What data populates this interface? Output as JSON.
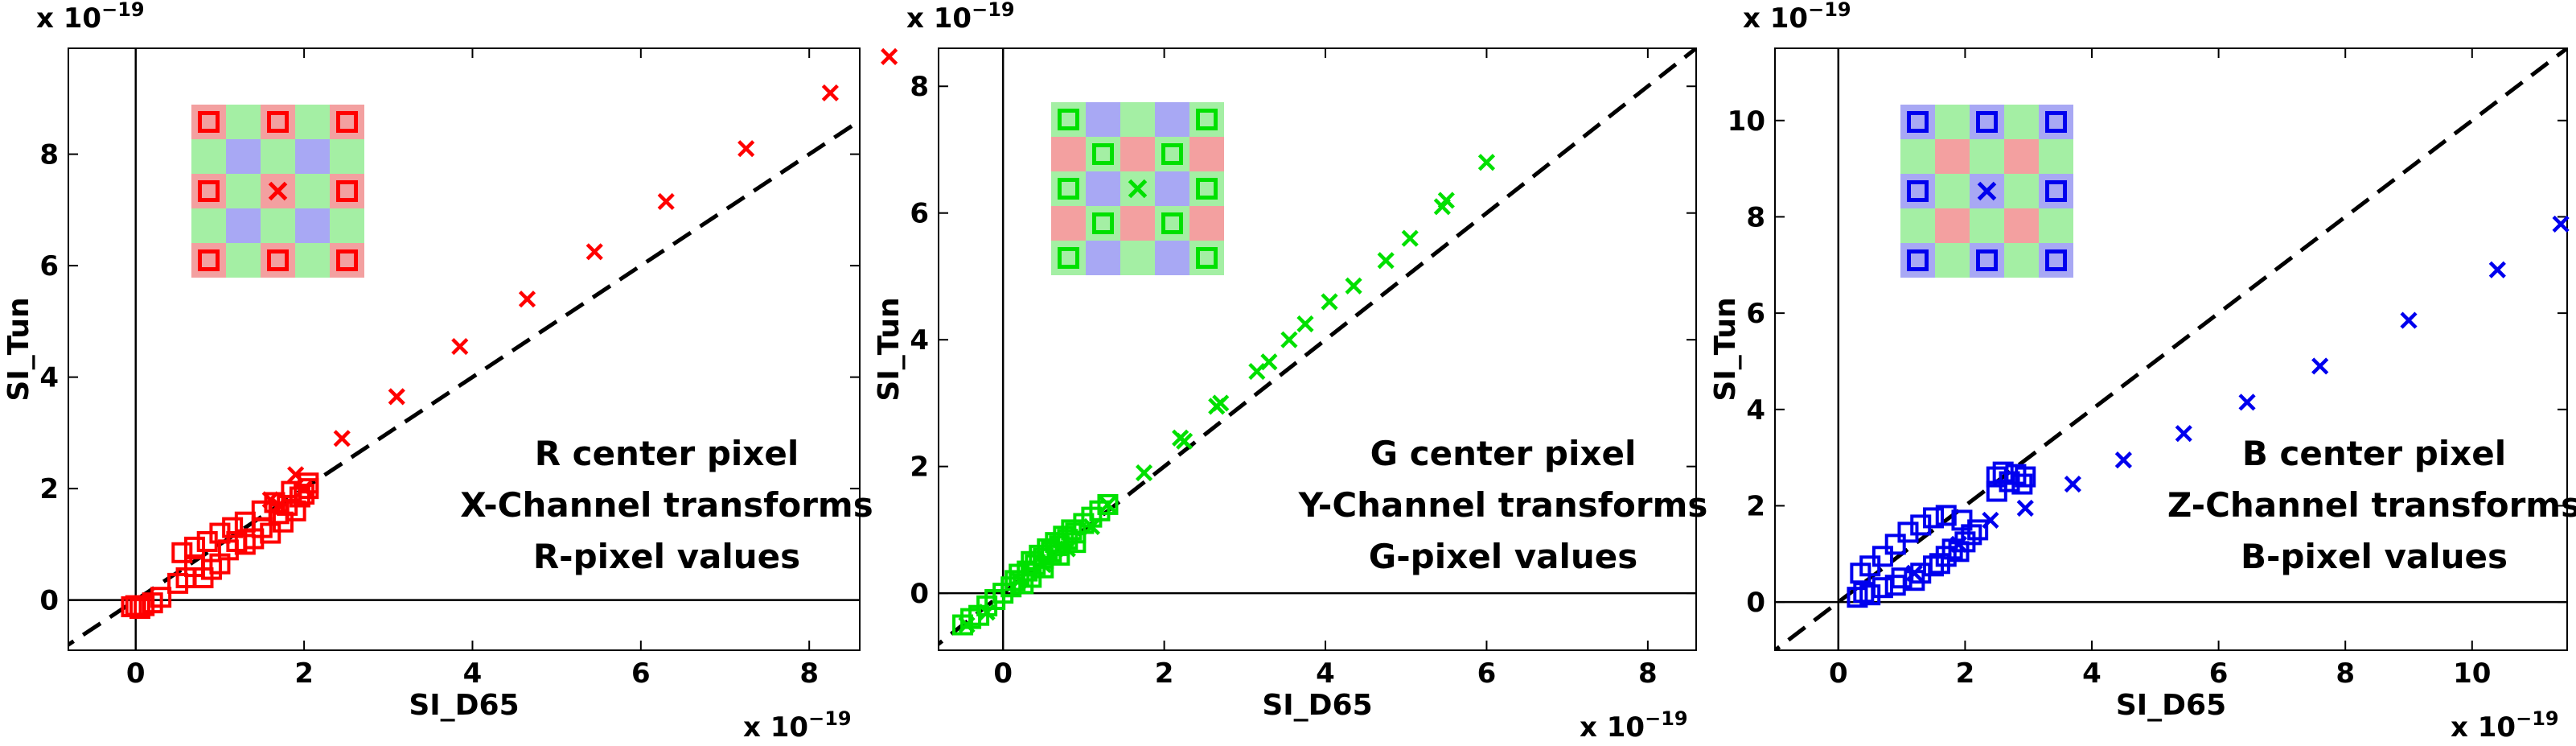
{
  "chart_data": [
    {
      "type": "scatter",
      "xlabel": "SI_D65",
      "ylabel": "SI_Tun",
      "x_exponent_label": "x 10",
      "y_exponent_label": "x 10",
      "exponent": "−19",
      "xlim": [
        -0.8,
        8.6
      ],
      "ylim": [
        -0.9,
        9.9
      ],
      "xticks": [
        0,
        2,
        4,
        6,
        8
      ],
      "yticks": [
        0,
        2,
        4,
        6,
        8
      ],
      "color": "#ff0000",
      "annotations": [
        "R center pixel",
        "X-Channel transforms",
        "R-pixel values"
      ],
      "inset": {
        "layout": [
          "R",
          "G",
          "R",
          "G",
          "R",
          "G",
          "B",
          "G",
          "B",
          "G",
          "R",
          "G",
          "R",
          "G",
          "R",
          "G",
          "B",
          "G",
          "B",
          "G",
          "R",
          "G",
          "R",
          "G",
          "R"
        ],
        "marker_square_cells": [
          0,
          2,
          4,
          10,
          14,
          20,
          22,
          24
        ],
        "marker_x_cell": 12
      },
      "series": [
        {
          "marker": "square",
          "points": [
            [
              -0.05,
              -0.12
            ],
            [
              0.0,
              -0.1
            ],
            [
              0.05,
              -0.15
            ],
            [
              0.1,
              -0.1
            ],
            [
              0.2,
              -0.05
            ],
            [
              0.3,
              0.05
            ],
            [
              0.5,
              0.3
            ],
            [
              0.6,
              0.4
            ],
            [
              0.7,
              0.6
            ],
            [
              0.8,
              0.4
            ],
            [
              0.9,
              0.55
            ],
            [
              1.0,
              0.65
            ],
            [
              1.1,
              0.9
            ],
            [
              1.2,
              1.05
            ],
            [
              1.3,
              1.0
            ],
            [
              1.4,
              1.1
            ],
            [
              1.5,
              1.3
            ],
            [
              1.6,
              1.2
            ],
            [
              1.7,
              1.55
            ],
            [
              1.75,
              1.4
            ],
            [
              1.8,
              1.7
            ],
            [
              1.9,
              1.6
            ],
            [
              1.95,
              1.85
            ],
            [
              2.0,
              1.9
            ],
            [
              2.05,
              2.0
            ],
            [
              0.55,
              0.85
            ],
            [
              0.7,
              0.95
            ],
            [
              0.85,
              1.05
            ],
            [
              1.0,
              1.2
            ],
            [
              1.15,
              1.3
            ],
            [
              1.3,
              1.4
            ],
            [
              1.5,
              1.6
            ],
            [
              1.65,
              1.75
            ],
            [
              1.85,
              1.95
            ],
            [
              2.05,
              2.1
            ]
          ]
        },
        {
          "marker": "x",
          "points": [
            [
              2.0,
              2.0
            ],
            [
              2.45,
              2.9
            ],
            [
              3.1,
              3.65
            ],
            [
              3.85,
              4.55
            ],
            [
              4.65,
              5.4
            ],
            [
              5.45,
              6.25
            ],
            [
              6.3,
              7.15
            ],
            [
              7.25,
              8.1
            ],
            [
              8.25,
              9.1
            ],
            [
              8.95,
              9.75
            ],
            [
              1.6,
              1.8
            ],
            [
              1.9,
              2.25
            ],
            [
              1.7,
              1.7
            ]
          ]
        }
      ]
    },
    {
      "type": "scatter",
      "xlabel": "SI_D65",
      "ylabel": "SI_Tun",
      "x_exponent_label": "x 10",
      "y_exponent_label": "x 10",
      "exponent": "−19",
      "xlim": [
        -0.8,
        8.6
      ],
      "ylim": [
        -0.9,
        8.6
      ],
      "xticks": [
        0,
        2,
        4,
        6,
        8
      ],
      "yticks": [
        0,
        2,
        4,
        6,
        8
      ],
      "color": "#00e000",
      "annotations": [
        "G center pixel",
        "Y-Channel transforms",
        "G-pixel values"
      ],
      "inset": {
        "layout": [
          "G",
          "B",
          "G",
          "B",
          "G",
          "R",
          "G",
          "R",
          "G",
          "R",
          "G",
          "B",
          "G",
          "B",
          "G",
          "R",
          "G",
          "R",
          "G",
          "R",
          "G",
          "B",
          "G",
          "B",
          "G"
        ],
        "marker_square_cells": [
          0,
          4,
          6,
          8,
          10,
          14,
          16,
          18,
          20,
          24
        ],
        "marker_x_cell": 12
      },
      "series": [
        {
          "marker": "square",
          "points": [
            [
              -0.5,
              -0.5
            ],
            [
              -0.4,
              -0.4
            ],
            [
              -0.3,
              -0.35
            ],
            [
              -0.2,
              -0.2
            ],
            [
              -0.1,
              -0.1
            ],
            [
              0.0,
              0.0
            ],
            [
              0.1,
              0.1
            ],
            [
              0.15,
              0.2
            ],
            [
              0.2,
              0.3
            ],
            [
              0.3,
              0.35
            ],
            [
              0.35,
              0.5
            ],
            [
              0.4,
              0.45
            ],
            [
              0.45,
              0.6
            ],
            [
              0.5,
              0.55
            ],
            [
              0.55,
              0.7
            ],
            [
              0.6,
              0.65
            ],
            [
              0.65,
              0.8
            ],
            [
              0.7,
              0.75
            ],
            [
              0.75,
              0.9
            ],
            [
              0.8,
              0.85
            ],
            [
              0.85,
              1.0
            ],
            [
              0.9,
              0.95
            ],
            [
              1.0,
              1.1
            ],
            [
              1.1,
              1.2
            ],
            [
              1.2,
              1.3
            ],
            [
              1.3,
              1.4
            ],
            [
              0.25,
              0.15
            ],
            [
              0.35,
              0.25
            ],
            [
              0.5,
              0.4
            ],
            [
              0.7,
              0.6
            ],
            [
              0.9,
              0.8
            ]
          ]
        },
        {
          "marker": "x",
          "points": [
            [
              -0.45,
              -0.5
            ],
            [
              -0.2,
              -0.3
            ],
            [
              0.2,
              0.2
            ],
            [
              0.5,
              0.45
            ],
            [
              0.8,
              0.7
            ],
            [
              1.1,
              1.05
            ],
            [
              1.3,
              1.4
            ],
            [
              1.75,
              1.9
            ],
            [
              2.2,
              2.45
            ],
            [
              2.25,
              2.4
            ],
            [
              2.65,
              2.95
            ],
            [
              2.7,
              3.0
            ],
            [
              3.15,
              3.5
            ],
            [
              3.3,
              3.65
            ],
            [
              3.55,
              4.0
            ],
            [
              3.75,
              4.25
            ],
            [
              4.05,
              4.6
            ],
            [
              4.35,
              4.85
            ],
            [
              4.75,
              5.25
            ],
            [
              5.05,
              5.6
            ],
            [
              5.45,
              6.1
            ],
            [
              5.5,
              6.2
            ],
            [
              6.0,
              6.8
            ]
          ]
        }
      ]
    },
    {
      "type": "scatter",
      "xlabel": "SI_D65",
      "ylabel": "SI_Tun",
      "x_exponent_label": "x 10",
      "y_exponent_label": "x 10",
      "exponent": "−19",
      "xlim": [
        -1.0,
        11.5
      ],
      "ylim": [
        -1.0,
        11.5
      ],
      "xticks": [
        0,
        2,
        4,
        6,
        8,
        10
      ],
      "yticks": [
        0,
        2,
        4,
        6,
        8,
        10
      ],
      "color": "#0000ee",
      "annotations": [
        "B center pixel",
        "Z-Channel transforms",
        "B-pixel values"
      ],
      "inset": {
        "layout": [
          "B",
          "G",
          "B",
          "G",
          "B",
          "G",
          "R",
          "G",
          "R",
          "G",
          "B",
          "G",
          "B",
          "G",
          "B",
          "G",
          "R",
          "G",
          "R",
          "G",
          "B",
          "G",
          "B",
          "G",
          "B"
        ],
        "marker_square_cells": [
          0,
          2,
          4,
          10,
          14,
          20,
          22,
          24
        ],
        "marker_x_cell": 12
      },
      "series": [
        {
          "marker": "square",
          "points": [
            [
              0.3,
              0.1
            ],
            [
              0.4,
              0.2
            ],
            [
              0.5,
              0.15
            ],
            [
              0.7,
              0.3
            ],
            [
              0.9,
              0.35
            ],
            [
              1.0,
              0.5
            ],
            [
              1.2,
              0.45
            ],
            [
              1.3,
              0.6
            ],
            [
              1.5,
              0.75
            ],
            [
              1.6,
              0.8
            ],
            [
              1.7,
              0.95
            ],
            [
              1.8,
              1.1
            ],
            [
              1.9,
              1.05
            ],
            [
              2.0,
              1.25
            ],
            [
              2.1,
              1.4
            ],
            [
              0.35,
              0.6
            ],
            [
              0.5,
              0.75
            ],
            [
              0.7,
              0.95
            ],
            [
              0.9,
              1.2
            ],
            [
              1.1,
              1.45
            ],
            [
              1.3,
              1.6
            ],
            [
              1.5,
              1.75
            ],
            [
              1.7,
              1.8
            ],
            [
              1.95,
              1.7
            ],
            [
              2.2,
              1.5
            ],
            [
              2.5,
              2.6
            ],
            [
              2.6,
              2.7
            ],
            [
              2.7,
              2.5
            ],
            [
              2.8,
              2.65
            ],
            [
              2.9,
              2.45
            ],
            [
              2.95,
              2.6
            ],
            [
              2.5,
              2.3
            ]
          ]
        },
        {
          "marker": "x",
          "points": [
            [
              1.2,
              0.6
            ],
            [
              1.9,
              1.2
            ],
            [
              2.4,
              1.7
            ],
            [
              2.95,
              1.95
            ],
            [
              3.7,
              2.45
            ],
            [
              4.5,
              2.95
            ],
            [
              5.45,
              3.5
            ],
            [
              6.45,
              4.15
            ],
            [
              7.6,
              4.9
            ],
            [
              9.0,
              5.85
            ],
            [
              10.4,
              6.9
            ],
            [
              11.4,
              7.85
            ]
          ]
        }
      ]
    }
  ]
}
